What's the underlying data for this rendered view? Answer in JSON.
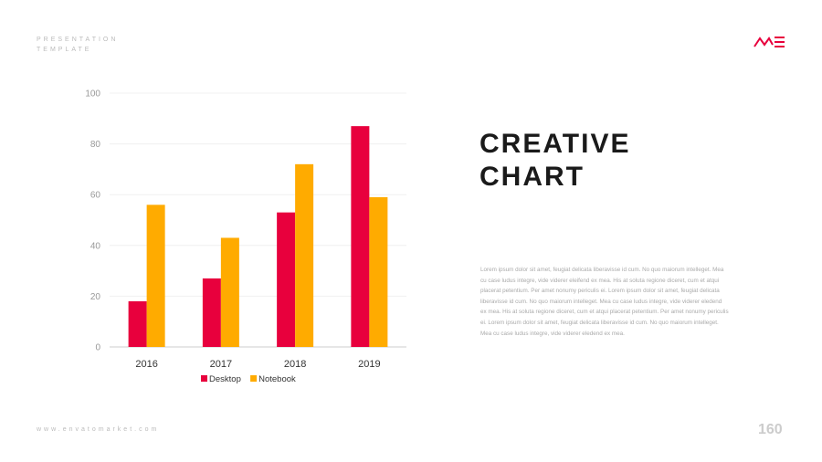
{
  "header": {
    "line1": "PRESENTATION",
    "line2": "TEMPLATE",
    "logo": "ME"
  },
  "title": {
    "line1": "CREATIVE",
    "line2": "CHART"
  },
  "body": "Lorem ipsum dolor sit amet, feugiat delicata liberavisse id cum. No quo maiorum intelleget. Mea cu case ludus integre, vide viderer eleifend ex mea. His at soluta regione diceret, cum et atqui placerat petentium. Per amet nonumy periculis ei. Lorem ipsum dolor sit amet, feugiat delicata liberavisse id cum. No quo maiorum intelleget. Mea cu case ludus integre, vide viderer eledend ex mea. His at soluta regione diceret, cum et atqui placerat petentium. Per amet nonumy periculis ei. Lorem ipsum dolor sit amet, feugiat delicata liberavisse id cum. No quo maiorum intelleget. Mea cu case ludus integre, vide viderer eledend ex mea.",
  "footer": {
    "url": "www.envatomarket.com",
    "page": "160"
  },
  "chart_data": {
    "type": "bar",
    "title": "",
    "xlabel": "",
    "ylabel": "",
    "categories": [
      "2016",
      "2017",
      "2018",
      "2019"
    ],
    "series": [
      {
        "name": "Desktop",
        "color": "#e8003d",
        "values": [
          18,
          27,
          53,
          87
        ]
      },
      {
        "name": "Notebook",
        "color": "#ffab00",
        "values": [
          56,
          43,
          72,
          59
        ]
      }
    ],
    "ylim": [
      0,
      100
    ],
    "yticks": [
      0,
      20,
      40,
      60,
      80,
      100
    ],
    "grid": true,
    "legend": "bottom"
  }
}
